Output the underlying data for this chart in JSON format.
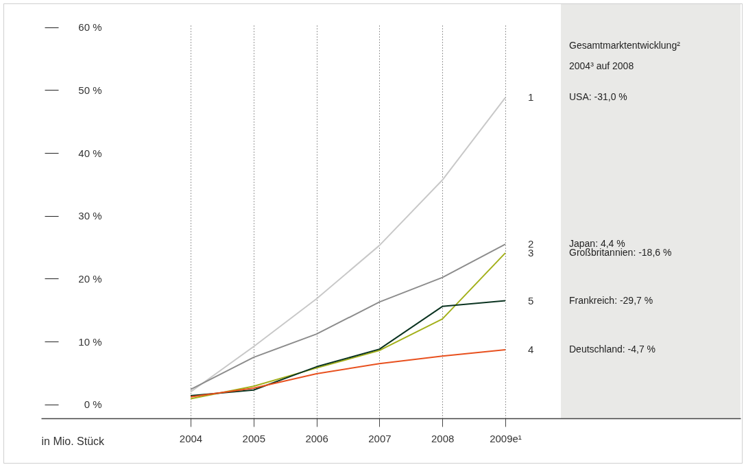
{
  "chart_data": {
    "type": "line",
    "xlabel": "in Mio. Stück",
    "categories": [
      "2004",
      "2005",
      "2006",
      "2007",
      "2008",
      "2009e¹"
    ],
    "series": [
      {
        "name": "1",
        "color": "#c8c8c8",
        "values": [
          2.0,
          9.2,
          16.8,
          25.3,
          35.7,
          48.8
        ]
      },
      {
        "name": "2",
        "color": "#8c8c8c",
        "values": [
          2.4,
          7.5,
          11.2,
          16.3,
          20.2,
          25.5
        ]
      },
      {
        "name": "3",
        "color": "#a3b01a",
        "values": [
          0.9,
          2.9,
          5.8,
          8.6,
          13.6,
          24.1
        ]
      },
      {
        "name": "5",
        "color": "#0a3320",
        "values": [
          1.4,
          2.3,
          6.0,
          8.8,
          15.6,
          16.5
        ]
      },
      {
        "name": "4",
        "color": "#e8501e",
        "values": [
          1.2,
          2.6,
          4.9,
          6.5,
          7.7,
          8.7
        ]
      }
    ],
    "ylim": [
      -2.2,
      60.3
    ],
    "yticks": [
      {
        "value": 0,
        "label": "0 %"
      },
      {
        "value": 10,
        "label": "10 %"
      },
      {
        "value": 20,
        "label": "20 %"
      },
      {
        "value": 30,
        "label": "30 %"
      },
      {
        "value": 40,
        "label": "40 %"
      },
      {
        "value": 50,
        "label": "50 %"
      },
      {
        "value": 60,
        "label": "60 %"
      }
    ],
    "grid": "x",
    "legend": false,
    "annotations": [
      "Gesamtmarktentwicklung²",
      "2004³ auf 2008",
      "USA: -31,0 %",
      "Japan: 4,4 %",
      "Großbritannien: -18,6 %",
      "Frankreich: -29,7 %",
      "Deutschland: -4,7 %"
    ]
  }
}
